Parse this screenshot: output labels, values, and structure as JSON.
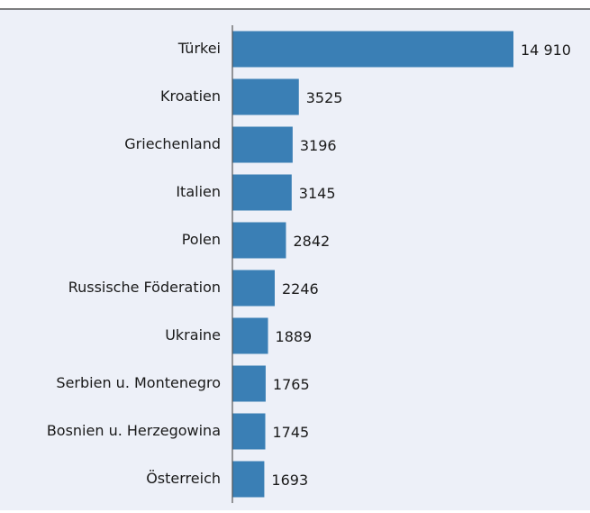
{
  "chart_data": {
    "type": "bar",
    "orientation": "horizontal",
    "categories": [
      "Türkei",
      "Kroatien",
      "Griechenland",
      "Italien",
      "Polen",
      "Russische Föderation",
      "Ukraine",
      "Serbien u. Montenegro",
      "Bosnien u. Herzegowina",
      "Österreich"
    ],
    "values": [
      14910,
      3525,
      3196,
      3145,
      2842,
      2246,
      1889,
      1765,
      1745,
      1693
    ],
    "value_labels": [
      "14 910",
      "3525",
      "3196",
      "3145",
      "2842",
      "2246",
      "1889",
      "1765",
      "1745",
      "1693"
    ],
    "color": "#3a7fb5"
  }
}
